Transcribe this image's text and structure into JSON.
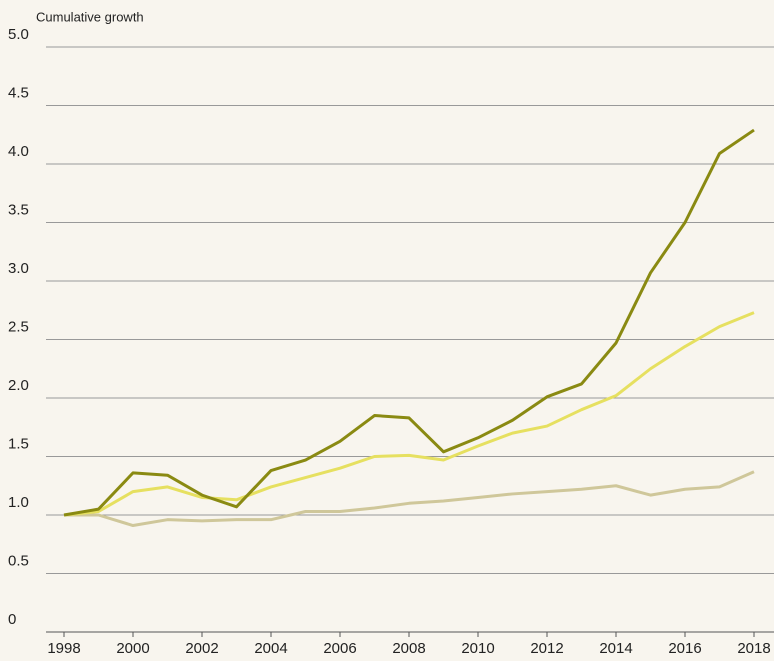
{
  "chart_data": {
    "type": "line",
    "y_axis_label": "Cumulative growth",
    "x": [
      1998,
      1999,
      2000,
      2001,
      2002,
      2003,
      2004,
      2005,
      2006,
      2007,
      2008,
      2009,
      2010,
      2011,
      2012,
      2013,
      2014,
      2015,
      2016,
      2017,
      2018
    ],
    "series": [
      {
        "color": "#cfc79a",
        "values": [
          1.0,
          1.0,
          0.91,
          0.96,
          0.95,
          0.96,
          0.96,
          1.03,
          1.03,
          1.06,
          1.1,
          1.12,
          1.15,
          1.18,
          1.2,
          1.22,
          1.25,
          1.17,
          1.22,
          1.24,
          1.37
        ]
      },
      {
        "color": "#e6e060",
        "values": [
          1.0,
          1.03,
          1.2,
          1.24,
          1.15,
          1.13,
          1.24,
          1.32,
          1.4,
          1.5,
          1.51,
          1.47,
          1.59,
          1.7,
          1.76,
          1.9,
          2.02,
          2.25,
          2.44,
          2.61,
          2.73
        ]
      },
      {
        "color": "#8a8a12",
        "values": [
          1.0,
          1.05,
          1.36,
          1.34,
          1.17,
          1.07,
          1.38,
          1.47,
          1.63,
          1.85,
          1.83,
          1.54,
          1.66,
          1.81,
          2.01,
          2.12,
          2.47,
          3.07,
          3.5,
          4.09,
          4.29
        ]
      }
    ],
    "xlim": [
      1998,
      2018
    ],
    "xticks": [
      1998,
      2000,
      2002,
      2004,
      2006,
      2008,
      2010,
      2012,
      2014,
      2016,
      2018
    ],
    "ylim": [
      0,
      5
    ],
    "yticks": [
      0,
      0.5,
      {
        "value": 1,
        "label": "1.0"
      },
      1.5,
      {
        "value": 2,
        "label": "2.0"
      },
      2.5,
      {
        "value": 3,
        "label": "3.0"
      },
      3.5,
      {
        "value": 4,
        "label": "4.0"
      },
      4.5,
      {
        "value": 5,
        "label": "5.0"
      }
    ],
    "grid": true
  }
}
